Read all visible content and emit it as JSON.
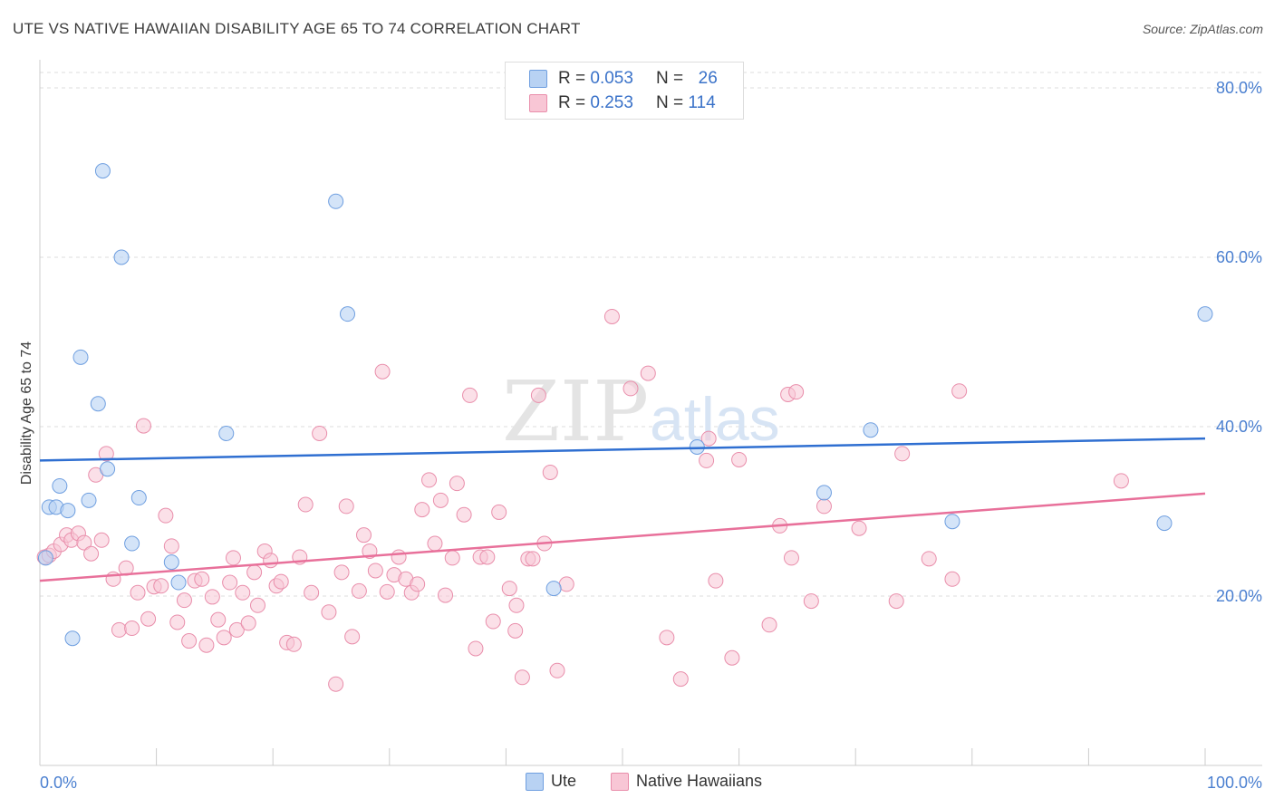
{
  "header": {
    "title": "UTE VS NATIVE HAWAIIAN DISABILITY AGE 65 TO 74 CORRELATION CHART",
    "source": "Source: ZipAtlas.com"
  },
  "watermark": {
    "zip": "ZIP",
    "atlas": "atlas"
  },
  "colors": {
    "ute_fill": "#b8d2f3",
    "ute_stroke": "#6f9fe0",
    "ute_line": "#2f6fd1",
    "nh_fill": "#f8c6d5",
    "nh_stroke": "#e98eab",
    "nh_line": "#e8709a",
    "tick_text": "#4a7fd0",
    "grid": "#dddddd"
  },
  "legend": {
    "rows": [
      {
        "r_label": "R =",
        "r_value": "0.053",
        "n_label": "N =",
        "n_value": "26"
      },
      {
        "r_label": "R =",
        "r_value": "0.253",
        "n_label": "N =",
        "n_value": "114"
      }
    ]
  },
  "bottom_legend": {
    "ute": "Ute",
    "nh": "Native Hawaiians"
  },
  "chart_data": {
    "type": "scatter",
    "title": "UTE VS NATIVE HAWAIIAN DISABILITY AGE 65 TO 74 CORRELATION CHART",
    "xlabel": "",
    "ylabel": "Disability Age 65 to 74",
    "xlim": [
      0,
      100
    ],
    "ylim": [
      0,
      80
    ],
    "x_tick_labels": [
      "0.0%",
      "100.0%"
    ],
    "y_ticks": [
      20,
      40,
      60,
      80
    ],
    "y_tick_labels": [
      "20.0%",
      "40.0%",
      "60.0%",
      "80.0%"
    ],
    "grid": true,
    "series": [
      {
        "name": "Ute",
        "R": 0.053,
        "N": 26,
        "trend": [
          [
            0,
            36.0
          ],
          [
            100,
            38.6
          ]
        ],
        "points": [
          [
            0.5,
            24.5
          ],
          [
            0.8,
            30.5
          ],
          [
            1.4,
            30.5
          ],
          [
            1.7,
            33.0
          ],
          [
            2.4,
            30.1
          ],
          [
            2.8,
            15.0
          ],
          [
            3.5,
            48.2
          ],
          [
            4.2,
            31.3
          ],
          [
            5.0,
            42.7
          ],
          [
            5.4,
            70.2
          ],
          [
            5.8,
            35.0
          ],
          [
            7.0,
            60.0
          ],
          [
            7.9,
            26.2
          ],
          [
            8.5,
            31.6
          ],
          [
            11.3,
            24.0
          ],
          [
            11.9,
            21.6
          ],
          [
            16.0,
            39.2
          ],
          [
            25.4,
            66.6
          ],
          [
            26.4,
            53.3
          ],
          [
            44.1,
            20.9
          ],
          [
            56.4,
            37.6
          ],
          [
            67.3,
            32.2
          ],
          [
            71.3,
            39.6
          ],
          [
            78.3,
            28.8
          ],
          [
            96.5,
            28.6
          ],
          [
            100.0,
            53.3
          ]
        ]
      },
      {
        "name": "Native Hawaiians",
        "R": 0.253,
        "N": 114,
        "trend": [
          [
            0,
            21.8
          ],
          [
            100,
            32.1
          ]
        ],
        "points": [
          [
            0.4,
            24.6
          ],
          [
            0.8,
            24.8
          ],
          [
            1.2,
            25.3
          ],
          [
            1.8,
            26.1
          ],
          [
            2.3,
            27.2
          ],
          [
            2.7,
            26.6
          ],
          [
            3.3,
            27.4
          ],
          [
            3.8,
            26.3
          ],
          [
            4.4,
            25.0
          ],
          [
            4.8,
            34.3
          ],
          [
            5.3,
            26.6
          ],
          [
            5.7,
            36.8
          ],
          [
            6.3,
            22.0
          ],
          [
            6.8,
            16.0
          ],
          [
            7.4,
            23.3
          ],
          [
            7.9,
            16.2
          ],
          [
            8.4,
            20.4
          ],
          [
            8.9,
            40.1
          ],
          [
            9.3,
            17.3
          ],
          [
            9.8,
            21.1
          ],
          [
            10.4,
            21.2
          ],
          [
            10.8,
            29.5
          ],
          [
            11.3,
            25.9
          ],
          [
            11.8,
            16.9
          ],
          [
            12.4,
            19.5
          ],
          [
            12.8,
            14.7
          ],
          [
            13.3,
            21.8
          ],
          [
            13.9,
            22.0
          ],
          [
            14.3,
            14.2
          ],
          [
            14.8,
            19.9
          ],
          [
            15.3,
            17.2
          ],
          [
            15.8,
            15.1
          ],
          [
            16.3,
            21.6
          ],
          [
            16.6,
            24.5
          ],
          [
            16.9,
            16.0
          ],
          [
            17.4,
            20.4
          ],
          [
            17.9,
            16.8
          ],
          [
            18.4,
            22.8
          ],
          [
            18.7,
            18.9
          ],
          [
            19.3,
            25.3
          ],
          [
            19.8,
            24.2
          ],
          [
            20.3,
            21.2
          ],
          [
            20.7,
            21.7
          ],
          [
            21.2,
            14.5
          ],
          [
            21.8,
            14.3
          ],
          [
            22.3,
            24.6
          ],
          [
            22.8,
            30.8
          ],
          [
            23.3,
            20.4
          ],
          [
            24.0,
            39.2
          ],
          [
            24.8,
            18.1
          ],
          [
            25.4,
            9.6
          ],
          [
            25.9,
            22.8
          ],
          [
            26.3,
            30.6
          ],
          [
            26.8,
            15.2
          ],
          [
            27.4,
            20.6
          ],
          [
            27.8,
            27.2
          ],
          [
            28.3,
            25.3
          ],
          [
            28.8,
            23.0
          ],
          [
            29.4,
            46.5
          ],
          [
            29.8,
            20.5
          ],
          [
            30.4,
            22.5
          ],
          [
            30.8,
            24.6
          ],
          [
            31.4,
            22.0
          ],
          [
            31.9,
            20.4
          ],
          [
            32.4,
            21.4
          ],
          [
            32.8,
            30.2
          ],
          [
            33.4,
            33.7
          ],
          [
            33.9,
            26.2
          ],
          [
            34.4,
            31.3
          ],
          [
            34.8,
            20.1
          ],
          [
            35.4,
            24.5
          ],
          [
            35.8,
            33.3
          ],
          [
            36.4,
            29.6
          ],
          [
            36.9,
            43.7
          ],
          [
            37.4,
            13.8
          ],
          [
            37.8,
            24.6
          ],
          [
            38.4,
            24.6
          ],
          [
            38.9,
            17.0
          ],
          [
            39.4,
            29.9
          ],
          [
            40.3,
            20.9
          ],
          [
            40.9,
            18.9
          ],
          [
            40.8,
            15.9
          ],
          [
            41.4,
            10.4
          ],
          [
            41.9,
            24.4
          ],
          [
            42.3,
            24.4
          ],
          [
            42.8,
            43.7
          ],
          [
            43.3,
            26.2
          ],
          [
            43.8,
            34.6
          ],
          [
            44.4,
            11.2
          ],
          [
            45.2,
            21.4
          ],
          [
            49.1,
            53.0
          ],
          [
            50.7,
            44.5
          ],
          [
            52.2,
            46.3
          ],
          [
            53.8,
            15.1
          ],
          [
            55.0,
            10.2
          ],
          [
            57.2,
            36.0
          ],
          [
            57.4,
            38.6
          ],
          [
            58.0,
            21.8
          ],
          [
            59.4,
            12.7
          ],
          [
            60.0,
            36.1
          ],
          [
            62.6,
            16.6
          ],
          [
            63.5,
            28.3
          ],
          [
            64.2,
            43.8
          ],
          [
            64.5,
            24.5
          ],
          [
            64.9,
            44.1
          ],
          [
            66.2,
            19.4
          ],
          [
            67.3,
            30.6
          ],
          [
            70.3,
            28.0
          ],
          [
            73.5,
            19.4
          ],
          [
            74.0,
            36.8
          ],
          [
            76.3,
            24.4
          ],
          [
            78.3,
            22.0
          ],
          [
            78.9,
            44.2
          ],
          [
            92.8,
            33.6
          ]
        ]
      }
    ]
  }
}
